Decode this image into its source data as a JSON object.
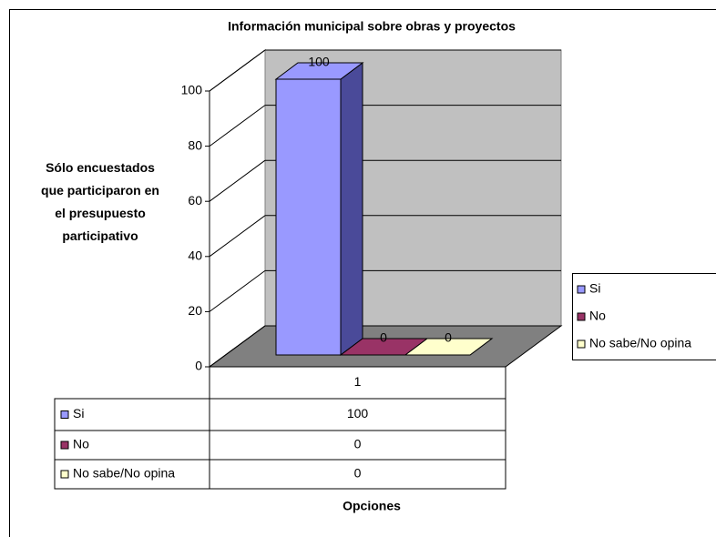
{
  "chart_data": {
    "type": "bar3d",
    "title": "Información municipal sobre obras y proyectos",
    "y_label": "Sólo encuestados que participaron en el presupuesto participativo",
    "x_label": "Opciones",
    "categories": [
      "1"
    ],
    "series": [
      {
        "name": "Si",
        "color": "#9999ff",
        "values": [
          100
        ]
      },
      {
        "name": "No",
        "color": "#993366",
        "values": [
          0
        ]
      },
      {
        "name": "No sabe/No opina",
        "color": "#ffffcc",
        "values": [
          0
        ]
      }
    ],
    "ylim": [
      0,
      100
    ],
    "yticks": [
      0,
      20,
      40,
      60,
      80,
      100
    ],
    "grid": true,
    "legend": "right",
    "data_table": true
  }
}
